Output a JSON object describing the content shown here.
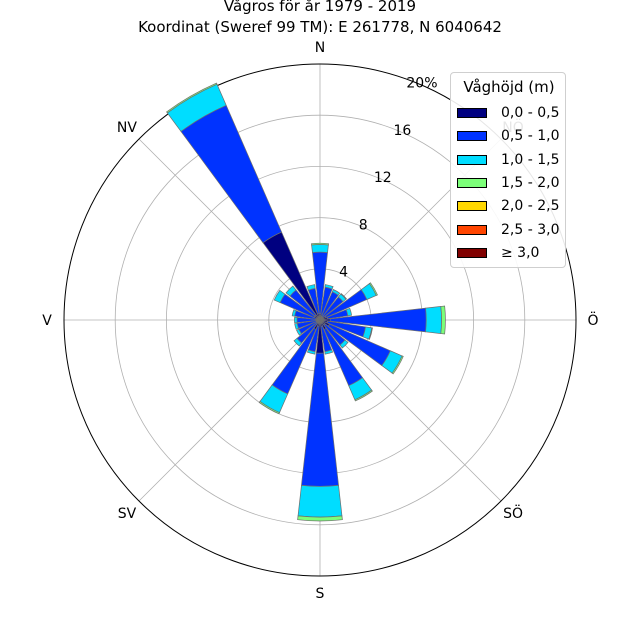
{
  "titles": {
    "line1": "Vågros för år 1979 - 2019",
    "line2": "Koordinat (Sweref 99 TM): E 261778, N 6040642"
  },
  "chart_data": {
    "type": "polar-stacked-bar",
    "title": "Vågros för år 1979 - 2019",
    "subtitle": "Koordinat (Sweref 99 TM): E 261778, N 6040642",
    "direction_labels": [
      "N",
      "NV",
      "V",
      "SV",
      "S",
      "SÖ",
      "Ö",
      "NÖ"
    ],
    "radial_ticks": [
      "4",
      "8",
      "12",
      "16",
      "20%"
    ],
    "radial_max": 20,
    "legend": {
      "title": "Våghöjd (m)",
      "placement": "upper-right",
      "bins": [
        "0,0 - 0,5",
        "0,5 - 1,0",
        "1,0 - 1,5",
        "1,5 - 2,0",
        "2,0 - 2,5",
        "2,5 - 3,0",
        "≥ 3,0"
      ],
      "colors": [
        "#000080",
        "#0033ff",
        "#00ddff",
        "#7cff79",
        "#ffd700",
        "#ff4500",
        "#800000"
      ]
    },
    "sectors": [
      {
        "dir": 0,
        "values": [
          0.5,
          4.8,
          0.6,
          0.1,
          0,
          0,
          0
        ]
      },
      {
        "dir": 15,
        "values": [
          0.4,
          2.2,
          0.2,
          0,
          0,
          0,
          0
        ]
      },
      {
        "dir": 30,
        "values": [
          0.3,
          2.1,
          0.2,
          0,
          0,
          0,
          0
        ]
      },
      {
        "dir": 45,
        "values": [
          0.3,
          2.0,
          0.3,
          0.05,
          0,
          0,
          0
        ]
      },
      {
        "dir": 60,
        "values": [
          0.5,
          3.5,
          0.8,
          0.1,
          0,
          0,
          0
        ]
      },
      {
        "dir": 75,
        "values": [
          0.6,
          1.6,
          0.3,
          0,
          0,
          0,
          0
        ]
      },
      {
        "dir": 90,
        "values": [
          0.8,
          7.5,
          1.2,
          0.3,
          0,
          0,
          0
        ]
      },
      {
        "dir": 105,
        "values": [
          0.6,
          3.0,
          0.5,
          0.05,
          0,
          0,
          0
        ]
      },
      {
        "dir": 120,
        "values": [
          0.8,
          5.2,
          1.0,
          0.1,
          0,
          0,
          0
        ]
      },
      {
        "dir": 135,
        "values": [
          0.5,
          2.0,
          0.3,
          0,
          0,
          0,
          0
        ]
      },
      {
        "dir": 150,
        "values": [
          0.8,
          4.8,
          1.2,
          0.1,
          0,
          0,
          0
        ]
      },
      {
        "dir": 165,
        "values": [
          0.5,
          2.0,
          0.2,
          0,
          0,
          0,
          0
        ]
      },
      {
        "dir": 180,
        "values": [
          2.6,
          10.4,
          2.4,
          0.3,
          0,
          0,
          0
        ]
      },
      {
        "dir": 195,
        "values": [
          0.5,
          2.0,
          0.2,
          0,
          0,
          0,
          0
        ]
      },
      {
        "dir": 210,
        "values": [
          0.8,
          5.5,
          1.6,
          0.1,
          0,
          0,
          0
        ]
      },
      {
        "dir": 225,
        "values": [
          0.3,
          2.0,
          0.3,
          0,
          0,
          0,
          0
        ]
      },
      {
        "dir": 240,
        "values": [
          0.3,
          1.5,
          0.2,
          0,
          0,
          0,
          0
        ]
      },
      {
        "dir": 255,
        "values": [
          0.3,
          1.5,
          0.2,
          0,
          0,
          0,
          0
        ]
      },
      {
        "dir": 270,
        "values": [
          0.3,
          1.5,
          0.2,
          0,
          0,
          0,
          0
        ]
      },
      {
        "dir": 285,
        "values": [
          0.3,
          1.7,
          0.2,
          0,
          0,
          0,
          0
        ]
      },
      {
        "dir": 300,
        "values": [
          0.5,
          2.9,
          0.5,
          0,
          0,
          0,
          0
        ]
      },
      {
        "dir": 315,
        "values": [
          0.5,
          2.5,
          0.4,
          0,
          0,
          0,
          0
        ]
      },
      {
        "dir": 330,
        "values": [
          7.5,
          10.8,
          1.8,
          0.1,
          0,
          0,
          0
        ]
      },
      {
        "dir": 345,
        "values": [
          0.5,
          2.0,
          0.3,
          0,
          0,
          0,
          0
        ]
      }
    ]
  }
}
